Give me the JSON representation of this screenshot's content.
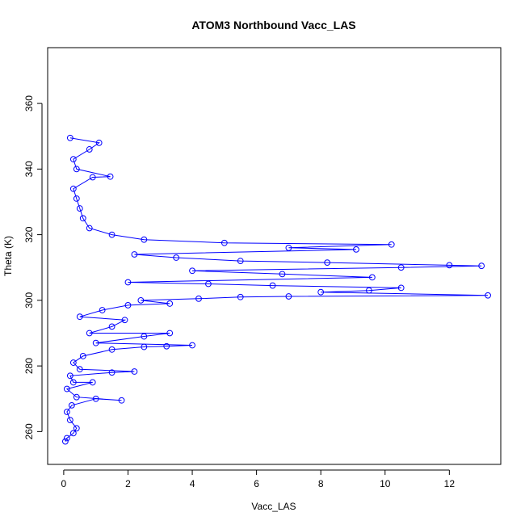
{
  "chart_data": {
    "type": "scatter",
    "title": "ATOM3 Northbound Vacc_LAS",
    "xlabel": "Vacc_LAS",
    "ylabel": "Theta (K)",
    "xlim": [
      -0.5,
      13.6
    ],
    "ylim": [
      250,
      377
    ],
    "x_ticks": [
      0,
      2,
      4,
      6,
      8,
      10,
      12
    ],
    "y_ticks": [
      260,
      280,
      300,
      320,
      340,
      360
    ],
    "grid": false,
    "legend": "none",
    "marker": "open-circle",
    "connected_line": true,
    "series": [
      {
        "color": "#0000ff",
        "points": [
          {
            "x": 0.05,
            "y": 257.0
          },
          {
            "x": 0.1,
            "y": 258.0
          },
          {
            "x": 0.3,
            "y": 259.5
          },
          {
            "x": 0.4,
            "y": 261.0
          },
          {
            "x": 0.2,
            "y": 263.5
          },
          {
            "x": 0.1,
            "y": 266.0
          },
          {
            "x": 0.25,
            "y": 268.0
          },
          {
            "x": 1.0,
            "y": 270.0
          },
          {
            "x": 1.8,
            "y": 269.5
          },
          {
            "x": 0.4,
            "y": 270.5
          },
          {
            "x": 0.1,
            "y": 273.0
          },
          {
            "x": 0.9,
            "y": 275.0
          },
          {
            "x": 0.3,
            "y": 275.0
          },
          {
            "x": 0.2,
            "y": 277.0
          },
          {
            "x": 1.5,
            "y": 278.0
          },
          {
            "x": 2.2,
            "y": 278.3
          },
          {
            "x": 0.5,
            "y": 279.0
          },
          {
            "x": 0.3,
            "y": 281.0
          },
          {
            "x": 0.6,
            "y": 283.0
          },
          {
            "x": 1.5,
            "y": 285.0
          },
          {
            "x": 2.5,
            "y": 285.8
          },
          {
            "x": 3.2,
            "y": 286.0
          },
          {
            "x": 4.0,
            "y": 286.3
          },
          {
            "x": 1.0,
            "y": 287.0
          },
          {
            "x": 2.5,
            "y": 289.0
          },
          {
            "x": 3.3,
            "y": 290.0
          },
          {
            "x": 0.8,
            "y": 290.0
          },
          {
            "x": 1.5,
            "y": 292.0
          },
          {
            "x": 1.9,
            "y": 294.0
          },
          {
            "x": 0.5,
            "y": 295.0
          },
          {
            "x": 1.2,
            "y": 297.0
          },
          {
            "x": 2.0,
            "y": 298.5
          },
          {
            "x": 3.3,
            "y": 299.0
          },
          {
            "x": 2.4,
            "y": 300.0
          },
          {
            "x": 4.2,
            "y": 300.5
          },
          {
            "x": 5.5,
            "y": 301.0
          },
          {
            "x": 7.0,
            "y": 301.2
          },
          {
            "x": 13.2,
            "y": 301.5
          },
          {
            "x": 8.0,
            "y": 302.5
          },
          {
            "x": 9.5,
            "y": 303.0
          },
          {
            "x": 10.5,
            "y": 303.8
          },
          {
            "x": 6.5,
            "y": 304.5
          },
          {
            "x": 4.5,
            "y": 305.0
          },
          {
            "x": 2.0,
            "y": 305.5
          },
          {
            "x": 9.6,
            "y": 307.0
          },
          {
            "x": 6.8,
            "y": 308.0
          },
          {
            "x": 4.0,
            "y": 309.0
          },
          {
            "x": 10.5,
            "y": 310.0
          },
          {
            "x": 13.0,
            "y": 310.5
          },
          {
            "x": 12.0,
            "y": 310.7
          },
          {
            "x": 8.2,
            "y": 311.5
          },
          {
            "x": 5.5,
            "y": 312.0
          },
          {
            "x": 3.5,
            "y": 313.0
          },
          {
            "x": 2.2,
            "y": 314.0
          },
          {
            "x": 9.1,
            "y": 315.5
          },
          {
            "x": 7.0,
            "y": 316.0
          },
          {
            "x": 10.2,
            "y": 317.0
          },
          {
            "x": 5.0,
            "y": 317.5
          },
          {
            "x": 2.5,
            "y": 318.5
          },
          {
            "x": 1.5,
            "y": 320.0
          },
          {
            "x": 0.8,
            "y": 322.0
          },
          {
            "x": 0.6,
            "y": 325.0
          },
          {
            "x": 0.5,
            "y": 328.0
          },
          {
            "x": 0.4,
            "y": 331.0
          },
          {
            "x": 0.3,
            "y": 334.0
          },
          {
            "x": 0.9,
            "y": 337.5
          },
          {
            "x": 1.45,
            "y": 337.7
          },
          {
            "x": 0.4,
            "y": 340.0
          },
          {
            "x": 0.3,
            "y": 343.0
          },
          {
            "x": 0.8,
            "y": 346.0
          },
          {
            "x": 1.1,
            "y": 348.0
          },
          {
            "x": 0.2,
            "y": 349.5
          }
        ]
      }
    ]
  }
}
